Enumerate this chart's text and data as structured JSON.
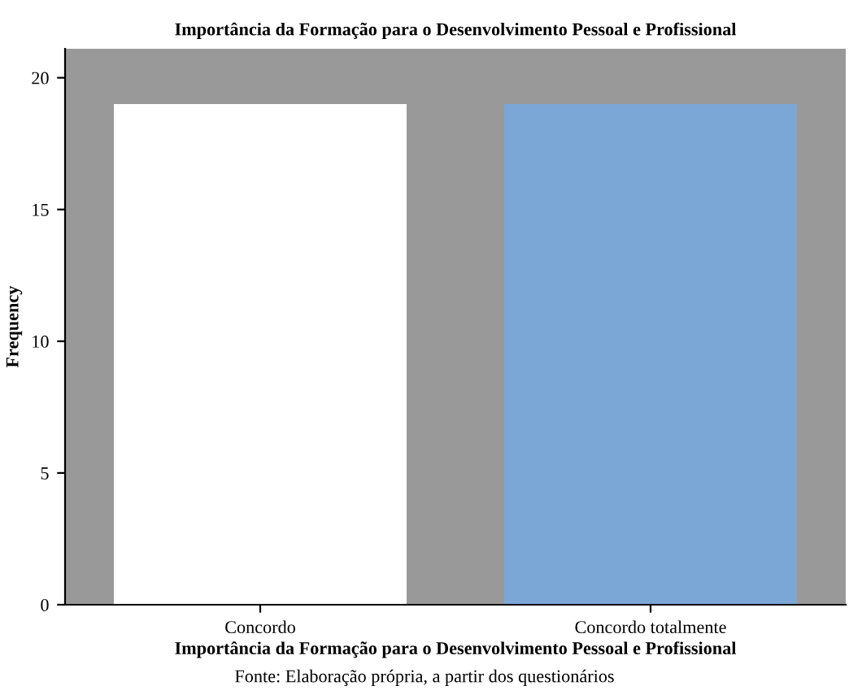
{
  "chart_data": {
    "type": "bar",
    "title": "Importância da Formação para o Desenvolvimento Pessoal e Profissional",
    "xlabel": "Importância da Formação para o Desenvolvimento Pessoal e Profissional",
    "ylabel": "Frequency",
    "categories": [
      "Concordo",
      "Concordo totalmente"
    ],
    "values": [
      19,
      19
    ],
    "colors": [
      "#ffffff",
      "#7ba7d6"
    ],
    "ylim": [
      0,
      21.1
    ],
    "yticks": [
      0,
      5,
      10,
      15,
      20
    ],
    "grid": false,
    "annotations": [
      "Fonte: Elaboração própria, a partir dos questionários"
    ]
  }
}
